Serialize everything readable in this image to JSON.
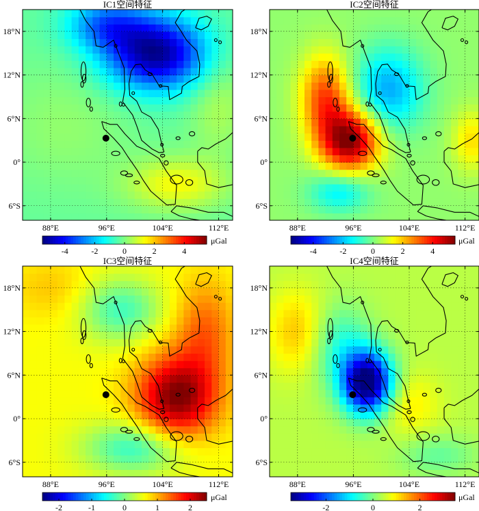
{
  "figure": {
    "unit": "μGal",
    "lon_ticks": [
      "88°E",
      "96°E",
      "104°E",
      "112°E"
    ],
    "lat_ticks": [
      "18°N",
      "12°N",
      "6°N",
      "0°",
      "6°S"
    ],
    "lon_range": [
      84,
      114
    ],
    "lat_range": [
      -8,
      21
    ],
    "lon_tick_values": [
      88,
      96,
      104,
      112
    ],
    "lat_tick_values": [
      18,
      12,
      6,
      0,
      -6
    ],
    "grid": true,
    "epicenter": {
      "lon": 95.9,
      "lat": 3.3,
      "label": ""
    },
    "colormap": "jet",
    "coastline_color": "#000000"
  },
  "panels": [
    {
      "title": "IC1空间特征",
      "colorbar": {
        "min": -5.5,
        "max": 5.5,
        "ticks": [
          "-4",
          "-2",
          "0",
          "2",
          "4"
        ],
        "tick_values": [
          -4,
          -2,
          0,
          2,
          4
        ]
      },
      "field": {
        "background": -0.3,
        "anomalies": [
          {
            "lon": 103,
            "lat": 15,
            "sx": 5,
            "sy": 3.5,
            "amp": -5.0
          },
          {
            "lon": 96,
            "lat": 19,
            "sx": 4,
            "sy": 2.5,
            "amp": -2.5
          },
          {
            "lon": 106,
            "lat": -3,
            "sx": 5,
            "sy": 2.5,
            "amp": 1.6
          },
          {
            "lon": 90,
            "lat": 5,
            "sx": 7,
            "sy": 6,
            "amp": 0.5
          },
          {
            "lon": 112,
            "lat": 8,
            "sx": 3,
            "sy": 5,
            "amp": 0.8
          }
        ]
      }
    },
    {
      "title": "IC2空间特征",
      "colorbar": {
        "min": -5.5,
        "max": 5.5,
        "ticks": [
          "-4",
          "-2",
          "0",
          "2",
          "4"
        ],
        "tick_values": [
          -4,
          -2,
          0,
          2,
          4
        ]
      },
      "field": {
        "background": 0.2,
        "anomalies": [
          {
            "lon": 95.5,
            "lat": 3,
            "sx": 3,
            "sy": 3,
            "amp": 5.2
          },
          {
            "lon": 92,
            "lat": 9,
            "sx": 2.5,
            "sy": 4,
            "amp": 3.2
          },
          {
            "lon": 101,
            "lat": 10,
            "sx": 3.5,
            "sy": 4,
            "amp": -2.5
          },
          {
            "lon": 94,
            "lat": -4,
            "sx": 3,
            "sy": 2,
            "amp": -1.8
          },
          {
            "lon": 113,
            "lat": 3,
            "sx": 2,
            "sy": 3,
            "amp": 1.5
          }
        ]
      }
    },
    {
      "title": "IC3空间特征",
      "colorbar": {
        "min": -2.5,
        "max": 2.5,
        "ticks": [
          "-2",
          "-1",
          "0",
          "1",
          "2"
        ],
        "tick_values": [
          -2,
          -1,
          0,
          1,
          2
        ]
      },
      "field": {
        "background": 0.6,
        "anomalies": [
          {
            "lon": 106,
            "lat": 3,
            "sx": 4,
            "sy": 4,
            "amp": 1.9
          },
          {
            "lon": 110,
            "lat": 12,
            "sx": 3,
            "sy": 5,
            "amp": 0.8
          },
          {
            "lon": 98,
            "lat": 15,
            "sx": 4,
            "sy": 3,
            "amp": -0.9
          },
          {
            "lon": 100,
            "lat": -4,
            "sx": 5,
            "sy": 2.5,
            "amp": -1.0
          },
          {
            "lon": 88,
            "lat": 18,
            "sx": 4,
            "sy": 3,
            "amp": 0.3
          }
        ]
      }
    },
    {
      "title": "IC4空间特征",
      "colorbar": {
        "min": -3.5,
        "max": 3.5,
        "ticks": [
          "-2",
          "0",
          "2"
        ],
        "tick_values": [
          -2,
          0,
          2
        ]
      },
      "field": {
        "background": 0.4,
        "anomalies": [
          {
            "lon": 98,
            "lat": 5,
            "sx": 2.5,
            "sy": 3,
            "amp": -4.2
          },
          {
            "lon": 94,
            "lat": 10,
            "sx": 3,
            "sy": 4,
            "amp": -1.0
          },
          {
            "lon": 88,
            "lat": 12,
            "sx": 3,
            "sy": 4,
            "amp": 0.9
          },
          {
            "lon": 104,
            "lat": 2,
            "sx": 3,
            "sy": 3,
            "amp": 0.6
          },
          {
            "lon": 108,
            "lat": -5,
            "sx": 4,
            "sy": 2,
            "amp": -0.6
          }
        ]
      }
    }
  ]
}
